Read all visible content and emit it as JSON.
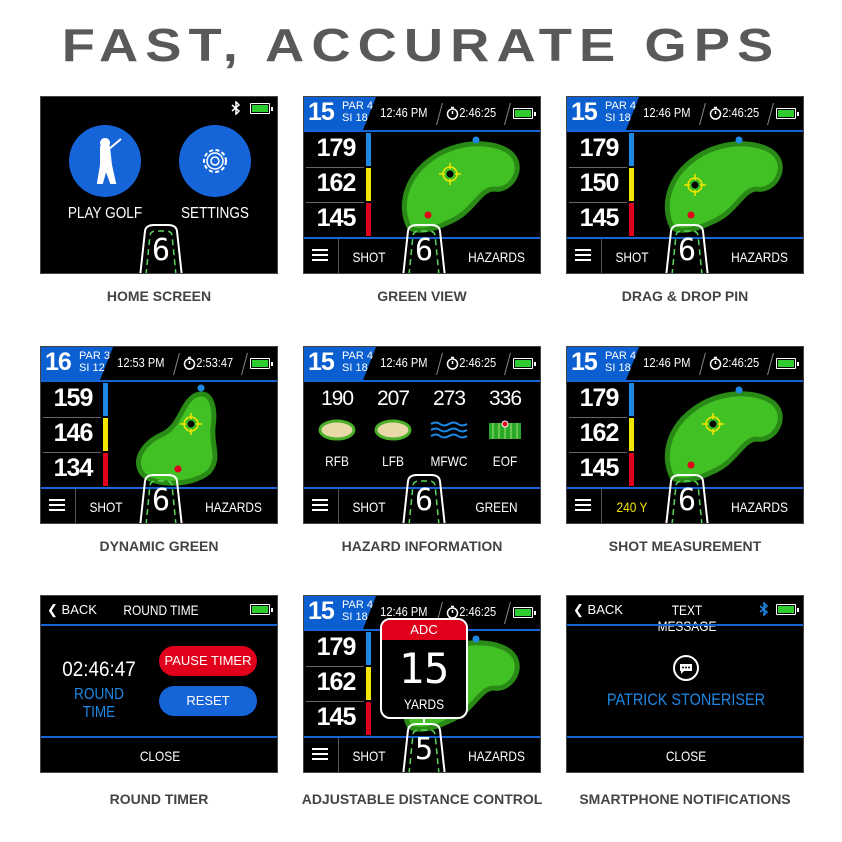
{
  "title": "FAST, ACCURATE GPS",
  "colors": {
    "accent_blue": "#0b5fd1",
    "green": "#42c125",
    "green_edge": "#2a8a16",
    "pin_blue": "#1e88e5",
    "pin_red": "#e0001b",
    "target_yellow": "#f2e600",
    "battery": "#2ecc2e"
  },
  "screens": [
    {
      "type": "home",
      "caption": "HOME SCREEN",
      "play_label": "PLAY GOLF",
      "settings_label": "SETTINGS",
      "club": "6",
      "icons": [
        "bluetooth-icon",
        "battery-icon",
        "golfer-icon",
        "gear-icon"
      ]
    },
    {
      "type": "hole",
      "caption": "GREEN VIEW",
      "hole": "15",
      "par": "PAR 4",
      "si": "SI 18",
      "time": "12:46 PM",
      "timer": "2:46:25",
      "distances": [
        "179",
        "162",
        "145"
      ],
      "left": "SHOT",
      "right": "HAZARDS",
      "club": "6",
      "target": "center"
    },
    {
      "type": "hole",
      "caption": "DRAG & DROP PIN",
      "hole": "15",
      "par": "PAR 4",
      "si": "SI 18",
      "time": "12:46 PM",
      "timer": "2:46:25",
      "distances": [
        "179",
        "150",
        "145"
      ],
      "left": "SHOT",
      "right": "HAZARDS",
      "club": "6",
      "target": "lower"
    },
    {
      "type": "hole",
      "caption": "DYNAMIC GREEN",
      "hole": "16",
      "par": "PAR 3",
      "si": "SI 12",
      "time": "12:53 PM",
      "timer": "2:53:47",
      "distances": [
        "159",
        "146",
        "134"
      ],
      "left": "SHOT",
      "right": "HAZARDS",
      "club": "6",
      "target": "dynamic"
    },
    {
      "type": "hazard",
      "caption": "HAZARD INFORMATION",
      "hole": "15",
      "par": "PAR 4",
      "si": "SI 18",
      "time": "12:46 PM",
      "timer": "2:46:25",
      "hazards": [
        {
          "dist": "190",
          "label": "RFB",
          "icon": "bunker-icon"
        },
        {
          "dist": "207",
          "label": "LFB",
          "icon": "bunker-icon"
        },
        {
          "dist": "273",
          "label": "MFWC",
          "icon": "water-icon"
        },
        {
          "dist": "336",
          "label": "EOF",
          "icon": "fairway-end-icon"
        }
      ],
      "left": "SHOT",
      "right": "GREEN",
      "club": "6"
    },
    {
      "type": "hole",
      "caption": "SHOT MEASUREMENT",
      "hole": "15",
      "par": "PAR 4",
      "si": "SI 18",
      "time": "12:46 PM",
      "timer": "2:46:25",
      "distances": [
        "179",
        "162",
        "145"
      ],
      "left": "240 Y",
      "left_yellow": true,
      "right": "HAZARDS",
      "club": "6",
      "target": "center"
    },
    {
      "type": "timer",
      "caption": "ROUND TIMER",
      "back": "BACK",
      "title": "ROUND TIME",
      "time": "02:46:47",
      "time_label": "ROUND TIME",
      "pause": "PAUSE TIMER",
      "reset": "RESET",
      "close": "CLOSE"
    },
    {
      "type": "hole",
      "caption": "ADJUSTABLE DISTANCE CONTROL",
      "hole": "15",
      "par": "PAR 4",
      "si": "SI 18",
      "time": "12:46 PM",
      "timer": "2:46:25",
      "distances": [
        "179",
        "162",
        "145"
      ],
      "left": "SHOT",
      "right": "HAZARDS",
      "club": "5",
      "target": "center",
      "adc": {
        "title": "ADC",
        "value": "15",
        "unit": "YARDS"
      }
    },
    {
      "type": "message",
      "caption": "SMARTPHONE NOTIFICATIONS",
      "back": "BACK",
      "title": "TEXT MESSAGE",
      "name": "PATRICK STONERISER",
      "close": "CLOSE"
    }
  ]
}
